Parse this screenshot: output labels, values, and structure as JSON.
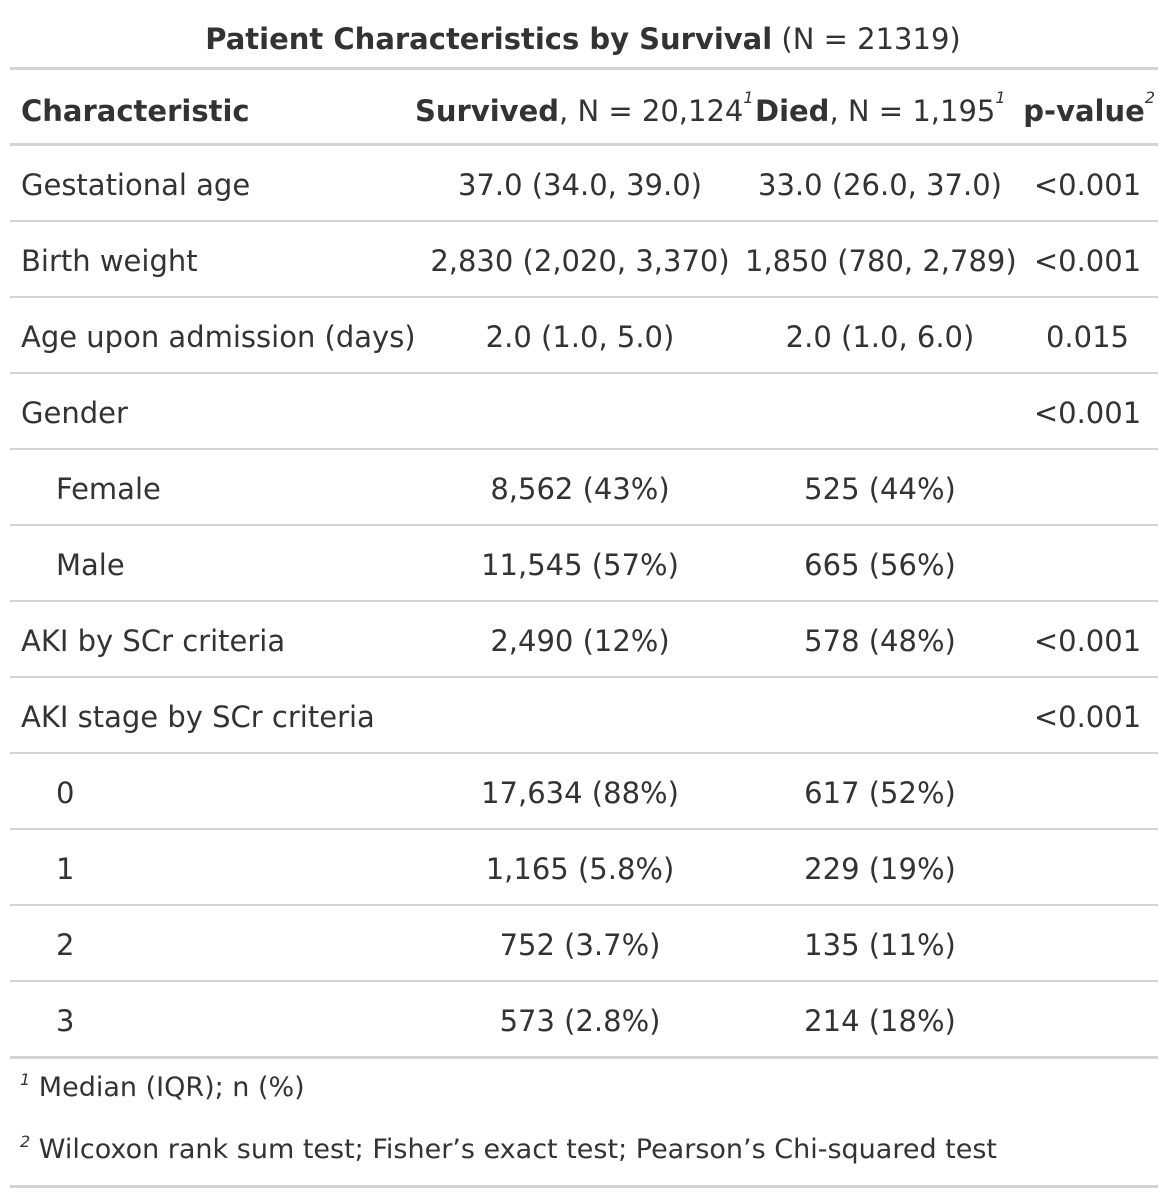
{
  "title": {
    "main": "Patient Characteristics by Survival",
    "sub": "(N = 21319)"
  },
  "header": {
    "characteristic": "Characteristic",
    "survived_label": "Survived",
    "survived_n": ", N = 20,124",
    "survived_mark": "1",
    "died_label": "Died",
    "died_n": ", N = 1,195",
    "died_mark": "1",
    "pvalue_label": "p-value",
    "pvalue_mark": "2"
  },
  "rows": [
    {
      "characteristic": "Gestational age",
      "survived": "37.0 (34.0, 39.0)",
      "died": "33.0 (26.0, 37.0)",
      "pvalue": "<0.001"
    },
    {
      "characteristic": "Birth weight",
      "survived": "2,830 (2,020, 3,370)",
      "died": "1,850 (780, 2,789)",
      "pvalue": "<0.001"
    },
    {
      "characteristic": "Age upon admission (days)",
      "survived": "2.0 (1.0, 5.0)",
      "died": "2.0 (1.0, 6.0)",
      "pvalue": "0.015"
    },
    {
      "characteristic": "Gender",
      "survived": "",
      "died": "",
      "pvalue": "<0.001"
    },
    {
      "characteristic": "Female",
      "survived": "8,562 (43%)",
      "died": "525 (44%)",
      "pvalue": ""
    },
    {
      "characteristic": "Male",
      "survived": "11,545 (57%)",
      "died": "665 (56%)",
      "pvalue": ""
    },
    {
      "characteristic": "AKI by SCr criteria",
      "survived": "2,490 (12%)",
      "died": "578 (48%)",
      "pvalue": "<0.001"
    },
    {
      "characteristic": "AKI stage by SCr criteria",
      "survived": "",
      "died": "",
      "pvalue": "<0.001"
    },
    {
      "characteristic": "0",
      "survived": "17,634 (88%)",
      "died": "617 (52%)",
      "pvalue": ""
    },
    {
      "characteristic": "1",
      "survived": "1,165 (5.8%)",
      "died": "229 (19%)",
      "pvalue": ""
    },
    {
      "characteristic": "2",
      "survived": "752 (3.7%)",
      "died": "135 (11%)",
      "pvalue": ""
    },
    {
      "characteristic": "3",
      "survived": "573 (2.8%)",
      "died": "214 (18%)",
      "pvalue": ""
    }
  ],
  "footnotes": [
    {
      "mark": "1",
      "text": "Median (IQR); n (%)"
    },
    {
      "mark": "2",
      "text": "Wilcoxon rank sum test; Fisher’s exact test; Pearson’s Chi-squared test"
    }
  ]
}
